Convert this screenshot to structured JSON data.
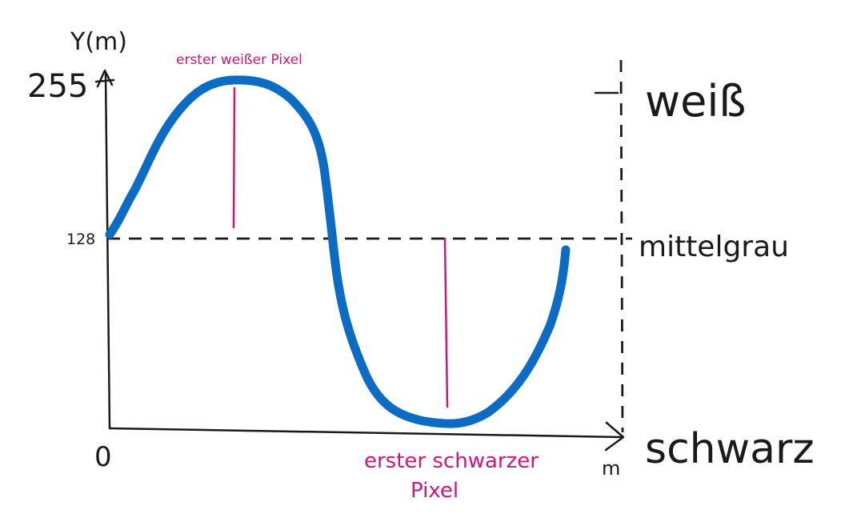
{
  "diagram": {
    "y_axis_label": "Y(m)",
    "x_axis_label": "m",
    "tick_max": "255",
    "tick_mid": "128",
    "origin": "0",
    "label_white": "weiß",
    "label_mid": "mittelgrau",
    "label_black": "schwarz",
    "annotation_first_white": "erster weißer Pixel",
    "annotation_first_black_line1": "erster schwarzer",
    "annotation_first_black_line2": "Pixel"
  },
  "colors": {
    "curve": "#0a6cc4",
    "annotation": "#d4147a",
    "ink": "#1a1a1a"
  }
}
